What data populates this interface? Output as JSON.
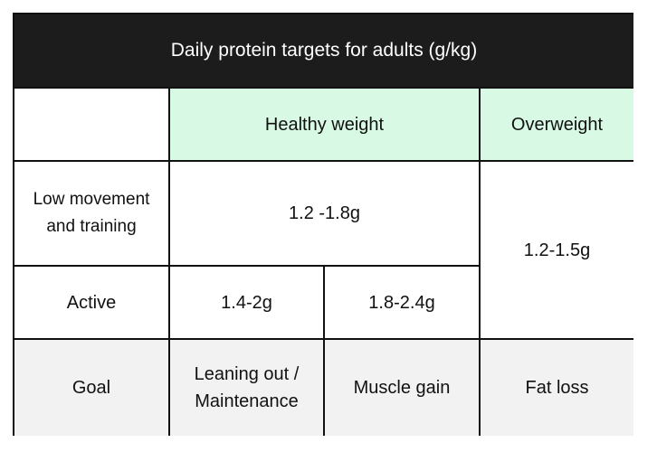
{
  "table": {
    "title": "Daily protein targets for adults (g/kg)",
    "headers": {
      "blank": "",
      "healthy_weight": "Healthy weight",
      "overweight": "Overweight"
    },
    "rows": {
      "low_movement": {
        "label": "Low movement and training",
        "healthy_value": "1.2 -1.8g"
      },
      "active": {
        "label": "Active",
        "healthy_value_1": "1.4-2g",
        "healthy_value_2": "1.8-2.4g"
      },
      "overweight_value": "1.2-1.5g",
      "goal": {
        "label": "Goal",
        "values": [
          "Leaning out / Maintenance",
          "Muscle gain",
          "Fat loss"
        ]
      }
    }
  },
  "colors": {
    "header_bg": "#1c1c1c",
    "header_text": "#ffffff",
    "healthy_header_bg": "#d8f9e4",
    "goal_row_bg": "#f2f2f2",
    "border": "#111111"
  }
}
